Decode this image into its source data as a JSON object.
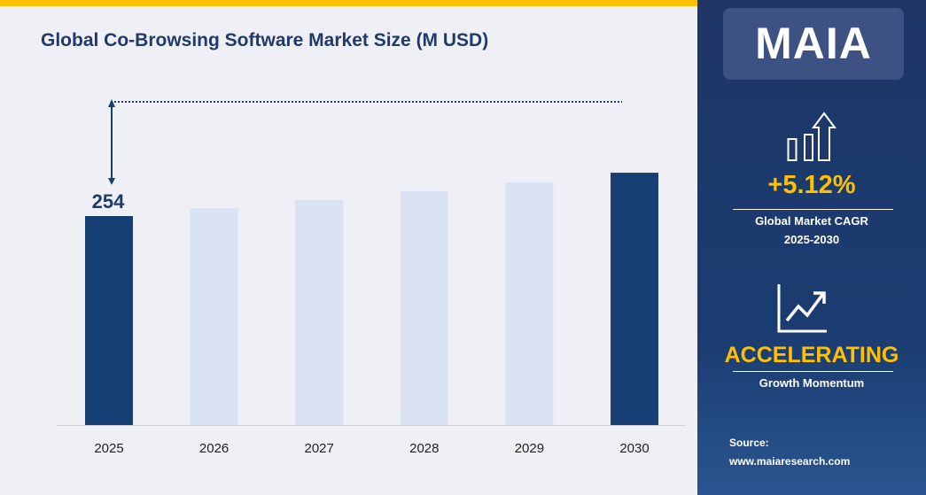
{
  "title": "Global Co-Browsing Software Market Size (M USD)",
  "chart_data": {
    "type": "bar",
    "title": "Global Co-Browsing Software Market Size (M USD)",
    "categories": [
      "2025",
      "2026",
      "2027",
      "2028",
      "2029",
      "2030"
    ],
    "values": [
      254,
      267,
      281,
      295,
      310,
      326
    ],
    "data_labels": {
      "2025": "254"
    },
    "highlighted": [
      "2025",
      "2030"
    ],
    "colors": {
      "highlight": "#163f73",
      "normal": "#dae3f3"
    },
    "grid": false,
    "xlabel": "",
    "ylabel": ""
  },
  "sidebar": {
    "logo": "MAIA",
    "cagr_value": "+5.12%",
    "cagr_label": "Global Market CAGR",
    "cagr_period": "2025-2030",
    "momentum_value": "ACCELERATING",
    "momentum_label": "Growth Momentum",
    "source_label": "Source:",
    "source_url": "www.maiaresearch.com",
    "icons": [
      "bar-chart-up-arrow-icon",
      "line-chart-trend-icon"
    ]
  }
}
